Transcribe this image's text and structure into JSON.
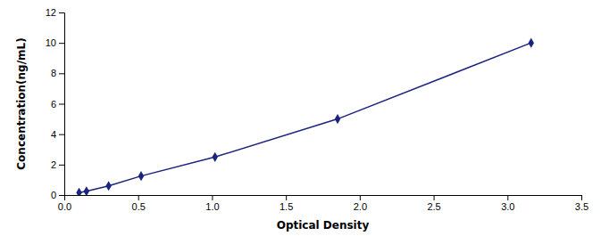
{
  "chart_data": {
    "type": "line",
    "x": [
      0.1,
      0.15,
      0.3,
      0.52,
      1.02,
      1.85,
      3.16
    ],
    "values": [
      0.16,
      0.25,
      0.6,
      1.25,
      2.5,
      5.0,
      10.0
    ],
    "color": "#1a237e",
    "marker": "diamond",
    "xlabel": "Optical Density",
    "ylabel": "Concentration(ng/mL)",
    "xlim": [
      0,
      3.5
    ],
    "ylim": [
      0,
      12
    ],
    "xticks": [
      {
        "value": 0,
        "label": "0.0"
      },
      0.5,
      {
        "value": 1,
        "label": "1.0"
      },
      1.5,
      {
        "value": 2,
        "label": "2.0"
      },
      2.5,
      {
        "value": 3,
        "label": "3.0"
      },
      3.5
    ],
    "yticks": [
      0,
      2,
      4,
      6,
      8,
      10,
      12
    ],
    "grid": false
  }
}
